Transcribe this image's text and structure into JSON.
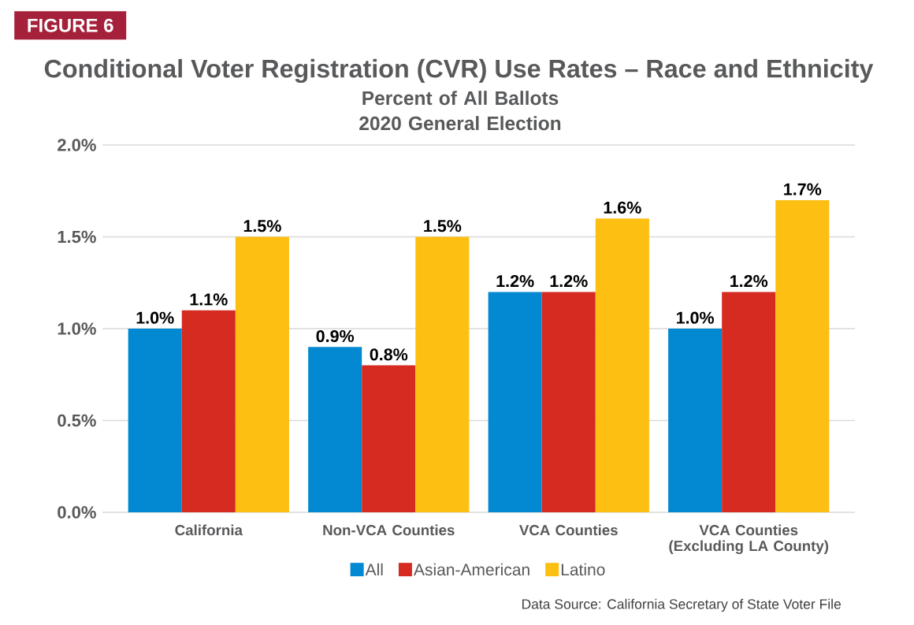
{
  "chart_data": {
    "type": "bar",
    "title": "Conditional Voter Registration (CVR) Use Rates – Race and Ethnicity",
    "subtitle": "Percent of All Ballots 2020 General Election",
    "categories": [
      "California",
      "Non-VCA Counties",
      "VCA Counties",
      "VCA Counties (Excluding LA County)"
    ],
    "series": [
      {
        "name": "All",
        "color": "#0289d1",
        "values": [
          1.0,
          0.9,
          1.2,
          1.0
        ],
        "value_labels": [
          "1.0%",
          "0.9%",
          "1.2%",
          "1.0%"
        ]
      },
      {
        "name": "Asian-American",
        "color": "#d62b20",
        "values": [
          1.1,
          0.8,
          1.2,
          1.2
        ],
        "value_labels": [
          "1.1%",
          "0.8%",
          "1.2%",
          "1.2%"
        ]
      },
      {
        "name": "Latino",
        "color": "#fdbf12",
        "values": [
          1.5,
          1.5,
          1.6,
          1.7
        ],
        "value_labels": [
          "1.5%",
          "1.5%",
          "1.6%",
          "1.7%"
        ]
      }
    ],
    "ylim": [
      0,
      2
    ],
    "yticks": [
      {
        "value": 0,
        "label": "0.0%"
      },
      {
        "value": 0.5,
        "label": "0.5%"
      },
      {
        "value": 1,
        "label": "1.0%"
      },
      {
        "value": 1.5,
        "label": "1.5%"
      },
      {
        "value": 2,
        "label": "2.0%"
      }
    ],
    "grid": "y",
    "legend": "bottom",
    "annotations": [
      "FIGURE 6",
      "Data Source: California Secretary of State Voter File"
    ]
  }
}
